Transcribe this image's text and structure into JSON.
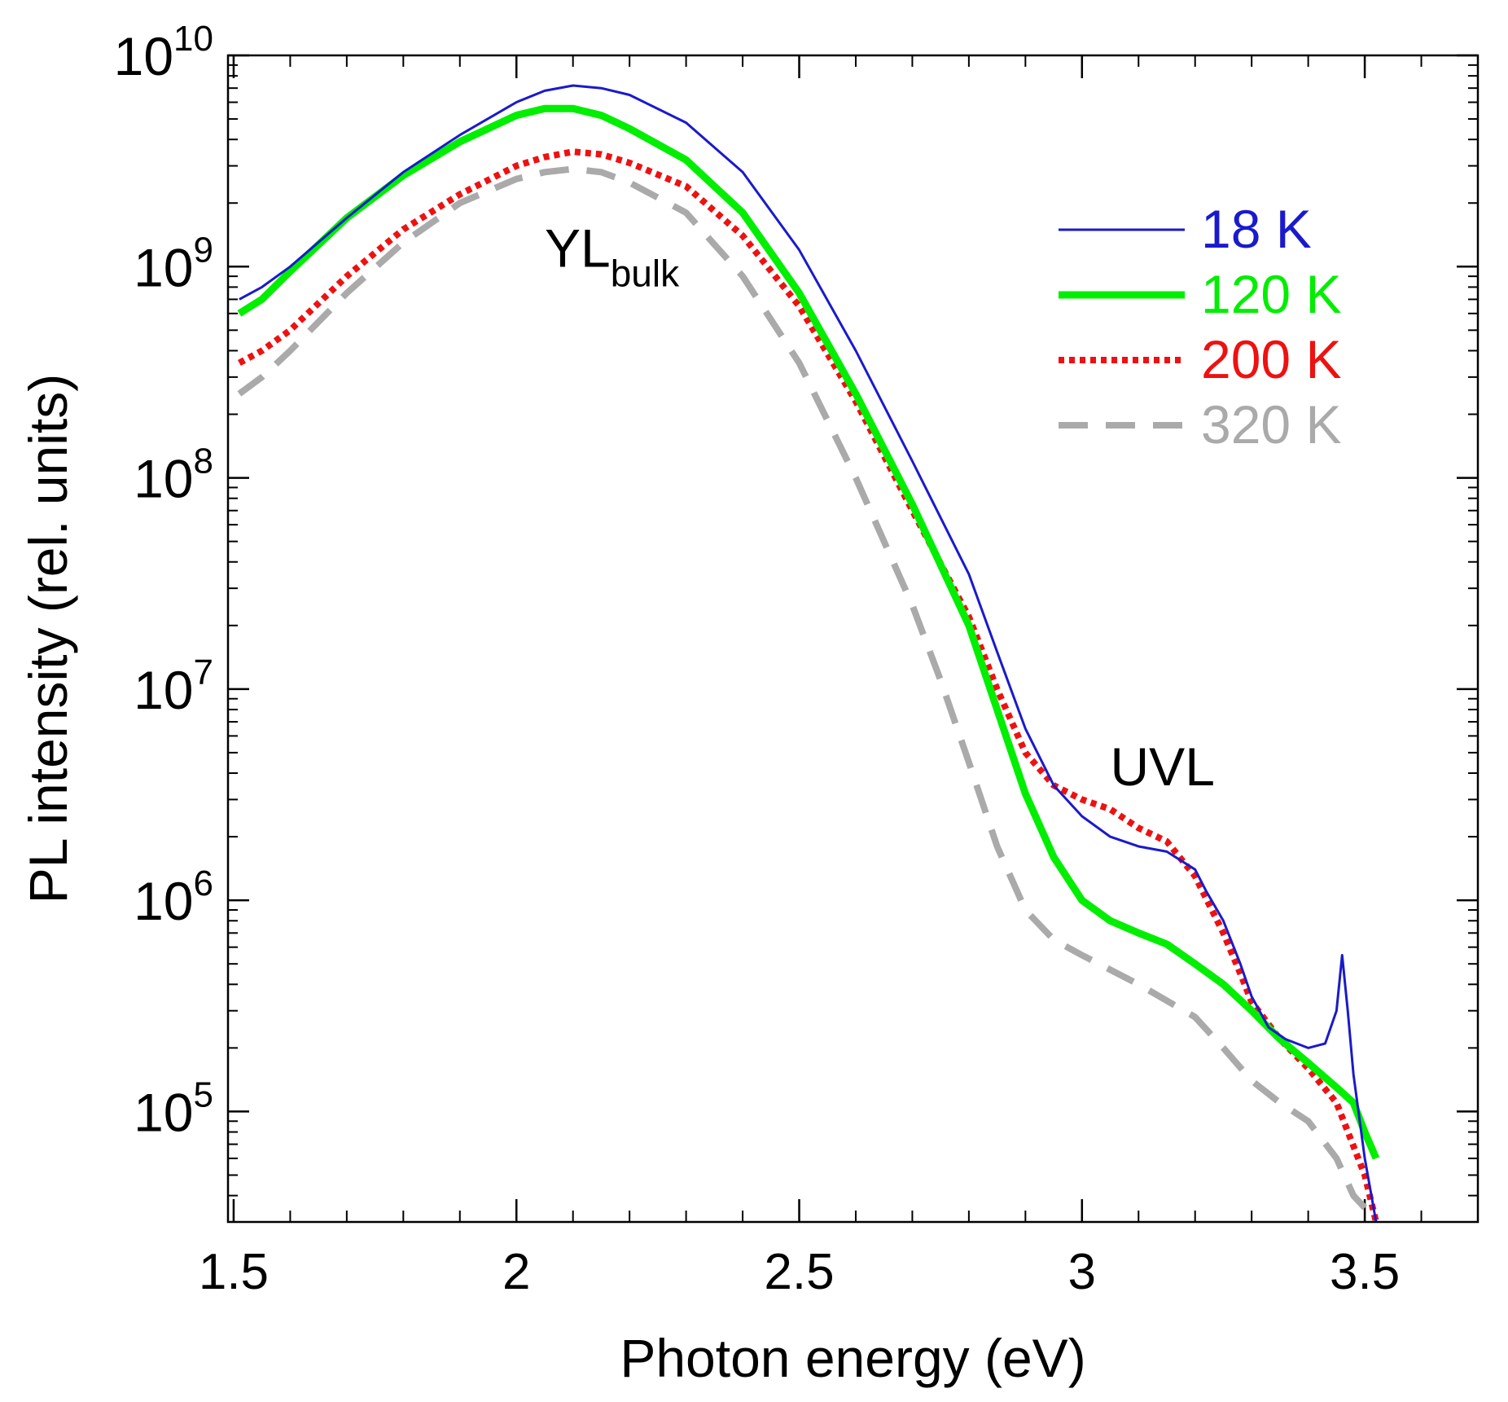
{
  "chart_data": {
    "type": "line",
    "title": "",
    "xlabel": "Photon energy (eV)",
    "ylabel": "PL intensity (rel. units)",
    "xlim": [
      1.49,
      3.7
    ],
    "ylim": [
      30000,
      10000000000
    ],
    "yscale": "log",
    "grid": false,
    "legend_position": "top-right",
    "x_ticks": [
      {
        "value": 1.5,
        "label": "1.5"
      },
      {
        "value": 2.0,
        "label": "2"
      },
      {
        "value": 2.5,
        "label": "2.5"
      },
      {
        "value": 3.0,
        "label": "3"
      },
      {
        "value": 3.5,
        "label": "3.5"
      }
    ],
    "x_minor_step": 0.1,
    "y_ticks": [
      {
        "value": 100000,
        "base": "10",
        "exp": "5"
      },
      {
        "value": 1000000,
        "base": "10",
        "exp": "6"
      },
      {
        "value": 10000000,
        "base": "10",
        "exp": "7"
      },
      {
        "value": 100000000,
        "base": "10",
        "exp": "8"
      },
      {
        "value": 1000000000,
        "base": "10",
        "exp": "9"
      },
      {
        "value": 10000000000,
        "base": "10",
        "exp": "10"
      }
    ],
    "annotations": [
      {
        "id": "yl",
        "main": "YL",
        "sub": "bulk",
        "x": 2.05,
        "y": 1000000000
      },
      {
        "id": "uvl",
        "main": "UVL",
        "x": 3.05,
        "y": 3500000
      }
    ],
    "series": [
      {
        "name": "18 K",
        "color": "#1a1acc",
        "style": "solid",
        "x": [
          1.51,
          1.55,
          1.6,
          1.7,
          1.8,
          1.9,
          2.0,
          2.05,
          2.1,
          2.15,
          2.2,
          2.3,
          2.4,
          2.5,
          2.6,
          2.7,
          2.8,
          2.85,
          2.9,
          2.95,
          3.0,
          3.05,
          3.1,
          3.15,
          3.2,
          3.22,
          3.25,
          3.28,
          3.3,
          3.33,
          3.36,
          3.4,
          3.43,
          3.45,
          3.46,
          3.47,
          3.48,
          3.5,
          3.52
        ],
        "values": [
          700000000,
          800000000,
          1000000000,
          1700000000,
          2800000000,
          4200000000,
          6000000000,
          6800000000,
          7200000000,
          7000000000,
          6500000000,
          4800000000,
          2800000000,
          1200000000,
          400000000,
          120000000,
          35000000,
          15000000,
          6500000,
          3500000,
          2500000,
          2000000,
          1800000,
          1700000,
          1400000,
          1100000,
          800000,
          500000,
          350000,
          250000,
          220000,
          200000,
          210000,
          300000,
          550000,
          300000,
          150000,
          60000,
          30000
        ]
      },
      {
        "name": "120 K",
        "color": "#00ee00",
        "style": "thick",
        "x": [
          1.51,
          1.55,
          1.6,
          1.7,
          1.8,
          1.9,
          2.0,
          2.05,
          2.1,
          2.15,
          2.2,
          2.3,
          2.4,
          2.5,
          2.6,
          2.7,
          2.8,
          2.85,
          2.9,
          2.95,
          3.0,
          3.05,
          3.1,
          3.15,
          3.2,
          3.25,
          3.3,
          3.35,
          3.4,
          3.45,
          3.48,
          3.5,
          3.52
        ],
        "values": [
          600000000,
          700000000,
          950000000,
          1700000000,
          2700000000,
          3900000000,
          5200000000,
          5600000000,
          5600000000,
          5200000000,
          4500000000,
          3200000000,
          1800000000,
          750000000,
          250000000,
          75000000,
          20000000,
          8000000,
          3200000,
          1600000,
          1000000,
          800000,
          700000,
          620000,
          500000,
          400000,
          300000,
          220000,
          170000,
          130000,
          110000,
          80000,
          60000
        ]
      },
      {
        "name": "200 K",
        "color": "#ee1111",
        "style": "dotted",
        "x": [
          1.51,
          1.55,
          1.6,
          1.7,
          1.8,
          1.9,
          2.0,
          2.05,
          2.1,
          2.15,
          2.2,
          2.3,
          2.4,
          2.5,
          2.6,
          2.7,
          2.8,
          2.85,
          2.9,
          2.95,
          3.0,
          3.05,
          3.1,
          3.15,
          3.2,
          3.25,
          3.28,
          3.3,
          3.35,
          3.4,
          3.45,
          3.5,
          3.52
        ],
        "values": [
          350000000,
          400000000,
          500000000,
          900000000,
          1500000000,
          2200000000,
          3000000000,
          3300000000,
          3500000000,
          3400000000,
          3100000000,
          2400000000,
          1400000000,
          650000000,
          230000000,
          70000000,
          22000000,
          10000000,
          5000000,
          3500000,
          3000000,
          2700000,
          2200000,
          1900000,
          1300000,
          700000,
          450000,
          330000,
          220000,
          160000,
          110000,
          50000,
          30000
        ]
      },
      {
        "name": "320 K",
        "color": "#aaaaaa",
        "style": "dashed",
        "x": [
          1.51,
          1.55,
          1.6,
          1.7,
          1.8,
          1.9,
          2.0,
          2.05,
          2.1,
          2.15,
          2.2,
          2.3,
          2.4,
          2.5,
          2.6,
          2.7,
          2.75,
          2.8,
          2.85,
          2.9,
          2.95,
          3.0,
          3.1,
          3.2,
          3.25,
          3.3,
          3.35,
          3.4,
          3.45,
          3.48,
          3.5
        ],
        "values": [
          250000000,
          300000000,
          400000000,
          750000000,
          1300000000,
          2000000000,
          2600000000,
          2800000000,
          2900000000,
          2800000000,
          2500000000,
          1800000000,
          900000000,
          350000000,
          100000000,
          25000000,
          11000000,
          4500000,
          1800000,
          900000,
          650000,
          550000,
          400000,
          280000,
          200000,
          140000,
          110000,
          90000,
          60000,
          40000,
          35000
        ]
      }
    ]
  }
}
